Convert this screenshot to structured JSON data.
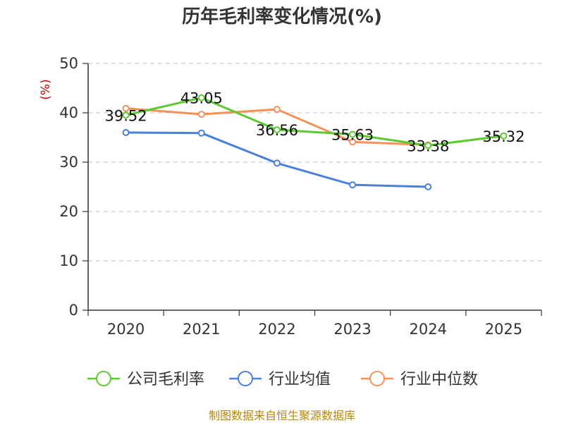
{
  "chart_data": {
    "type": "line",
    "title": "历年毛利率变化情况(%)",
    "ylabel": "(%)",
    "xlabel": "",
    "categories": [
      "2020",
      "2021",
      "2022",
      "2023",
      "2024",
      "2025"
    ],
    "ylim": [
      0,
      50
    ],
    "yticks": [
      0,
      10,
      20,
      30,
      40,
      50
    ],
    "grid": true,
    "legend_position": "bottom",
    "series": [
      {
        "name": "公司毛利率",
        "color": "#5cc92f",
        "values": [
          39.52,
          43.05,
          36.56,
          35.63,
          33.38,
          35.32
        ],
        "labels": [
          "39.52",
          "43.05",
          "36.56",
          "35.63",
          "33.38",
          "35.32"
        ]
      },
      {
        "name": "行业均值",
        "color": "#4a80d9",
        "values": [
          36.0,
          35.9,
          29.8,
          25.4,
          25.0,
          null
        ],
        "labels": []
      },
      {
        "name": "行业中位数",
        "color": "#f7915a",
        "values": [
          40.9,
          39.7,
          40.7,
          34.1,
          33.5,
          null
        ],
        "labels": []
      }
    ]
  },
  "source": "制图数据来自恒生聚源数据库"
}
